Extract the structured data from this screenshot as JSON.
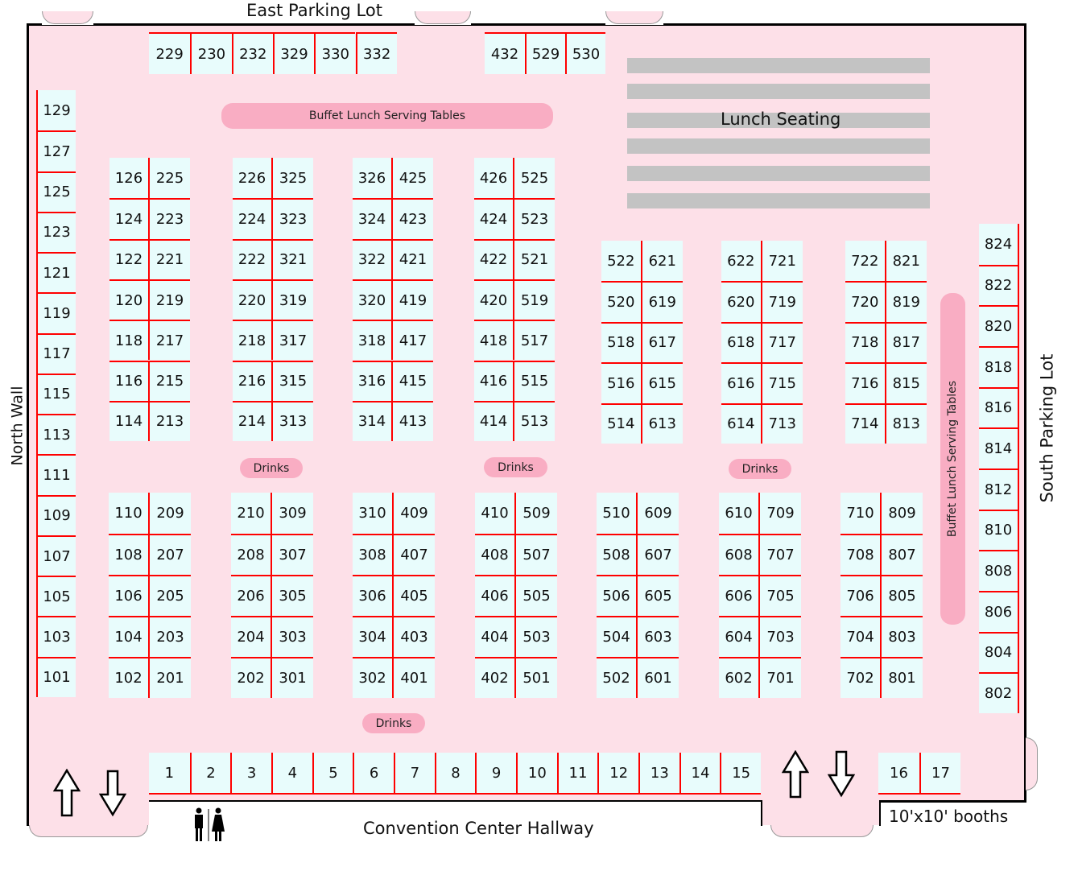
{
  "labels": {
    "east": "East Parking Lot",
    "north": "North Wall",
    "south": "South Parking Lot",
    "hallway": "Convention Center Hallway",
    "booth_size": "10'x10' booths",
    "lunch_seating": "Lunch Seating",
    "buffet_top": "Buffet Lunch Serving Tables",
    "buffet_right": "Buffet Lunch Serving Tables",
    "drinks": [
      "Drinks",
      "Drinks",
      "Drinks",
      "Drinks"
    ]
  },
  "colors": {
    "floor": "#fde0e8",
    "booth": "#e8fcfc",
    "divider": "#ff0000",
    "buffet": "#f9adc3",
    "seating": "#c3c3c3"
  },
  "booths": {
    "top_row_a": [
      "229",
      "230",
      "232",
      "329",
      "330",
      "332"
    ],
    "top_row_b": [
      "432",
      "529",
      "530"
    ],
    "left_column": [
      "129",
      "127",
      "125",
      "123",
      "121",
      "119",
      "117",
      "115",
      "113",
      "111",
      "109",
      "107",
      "105",
      "103",
      "101"
    ],
    "right_column": [
      "824",
      "822",
      "820",
      "818",
      "816",
      "814",
      "812",
      "810",
      "808",
      "806",
      "804",
      "802"
    ],
    "upper_blocks": [
      [
        [
          "126",
          "225"
        ],
        [
          "124",
          "223"
        ],
        [
          "122",
          "221"
        ],
        [
          "120",
          "219"
        ],
        [
          "118",
          "217"
        ],
        [
          "116",
          "215"
        ],
        [
          "114",
          "213"
        ]
      ],
      [
        [
          "226",
          "325"
        ],
        [
          "224",
          "323"
        ],
        [
          "222",
          "321"
        ],
        [
          "220",
          "319"
        ],
        [
          "218",
          "317"
        ],
        [
          "216",
          "315"
        ],
        [
          "214",
          "313"
        ]
      ],
      [
        [
          "326",
          "425"
        ],
        [
          "324",
          "423"
        ],
        [
          "322",
          "421"
        ],
        [
          "320",
          "419"
        ],
        [
          "318",
          "417"
        ],
        [
          "316",
          "415"
        ],
        [
          "314",
          "413"
        ]
      ],
      [
        [
          "426",
          "525"
        ],
        [
          "424",
          "523"
        ],
        [
          "422",
          "521"
        ],
        [
          "420",
          "519"
        ],
        [
          "418",
          "517"
        ],
        [
          "416",
          "515"
        ],
        [
          "414",
          "513"
        ]
      ]
    ],
    "middle_blocks": [
      [
        [
          "522",
          "621"
        ],
        [
          "520",
          "619"
        ],
        [
          "518",
          "617"
        ],
        [
          "516",
          "615"
        ],
        [
          "514",
          "613"
        ]
      ],
      [
        [
          "622",
          "721"
        ],
        [
          "620",
          "719"
        ],
        [
          "618",
          "717"
        ],
        [
          "616",
          "715"
        ],
        [
          "614",
          "713"
        ]
      ],
      [
        [
          "722",
          "821"
        ],
        [
          "720",
          "819"
        ],
        [
          "718",
          "817"
        ],
        [
          "716",
          "815"
        ],
        [
          "714",
          "813"
        ]
      ]
    ],
    "lower_blocks": [
      [
        [
          "110",
          "209"
        ],
        [
          "108",
          "207"
        ],
        [
          "106",
          "205"
        ],
        [
          "104",
          "203"
        ],
        [
          "102",
          "201"
        ]
      ],
      [
        [
          "210",
          "309"
        ],
        [
          "208",
          "307"
        ],
        [
          "206",
          "305"
        ],
        [
          "204",
          "303"
        ],
        [
          "202",
          "301"
        ]
      ],
      [
        [
          "310",
          "409"
        ],
        [
          "308",
          "407"
        ],
        [
          "306",
          "405"
        ],
        [
          "304",
          "403"
        ],
        [
          "302",
          "401"
        ]
      ],
      [
        [
          "410",
          "509"
        ],
        [
          "408",
          "507"
        ],
        [
          "406",
          "505"
        ],
        [
          "404",
          "503"
        ],
        [
          "402",
          "501"
        ]
      ],
      [
        [
          "510",
          "609"
        ],
        [
          "508",
          "607"
        ],
        [
          "506",
          "605"
        ],
        [
          "504",
          "603"
        ],
        [
          "502",
          "601"
        ]
      ],
      [
        [
          "610",
          "709"
        ],
        [
          "608",
          "707"
        ],
        [
          "606",
          "705"
        ],
        [
          "604",
          "703"
        ],
        [
          "602",
          "701"
        ]
      ],
      [
        [
          "710",
          "809"
        ],
        [
          "708",
          "807"
        ],
        [
          "706",
          "805"
        ],
        [
          "704",
          "803"
        ],
        [
          "702",
          "801"
        ]
      ]
    ],
    "bottom_row": [
      "1",
      "2",
      "3",
      "4",
      "5",
      "6",
      "7",
      "8",
      "9",
      "10",
      "11",
      "12",
      "13",
      "14",
      "15"
    ],
    "bottom_right": [
      "16",
      "17"
    ]
  },
  "icons": {
    "entrance": "arrow-up-icon",
    "exit": "arrow-down-icon",
    "restroom": "restroom-icon"
  }
}
